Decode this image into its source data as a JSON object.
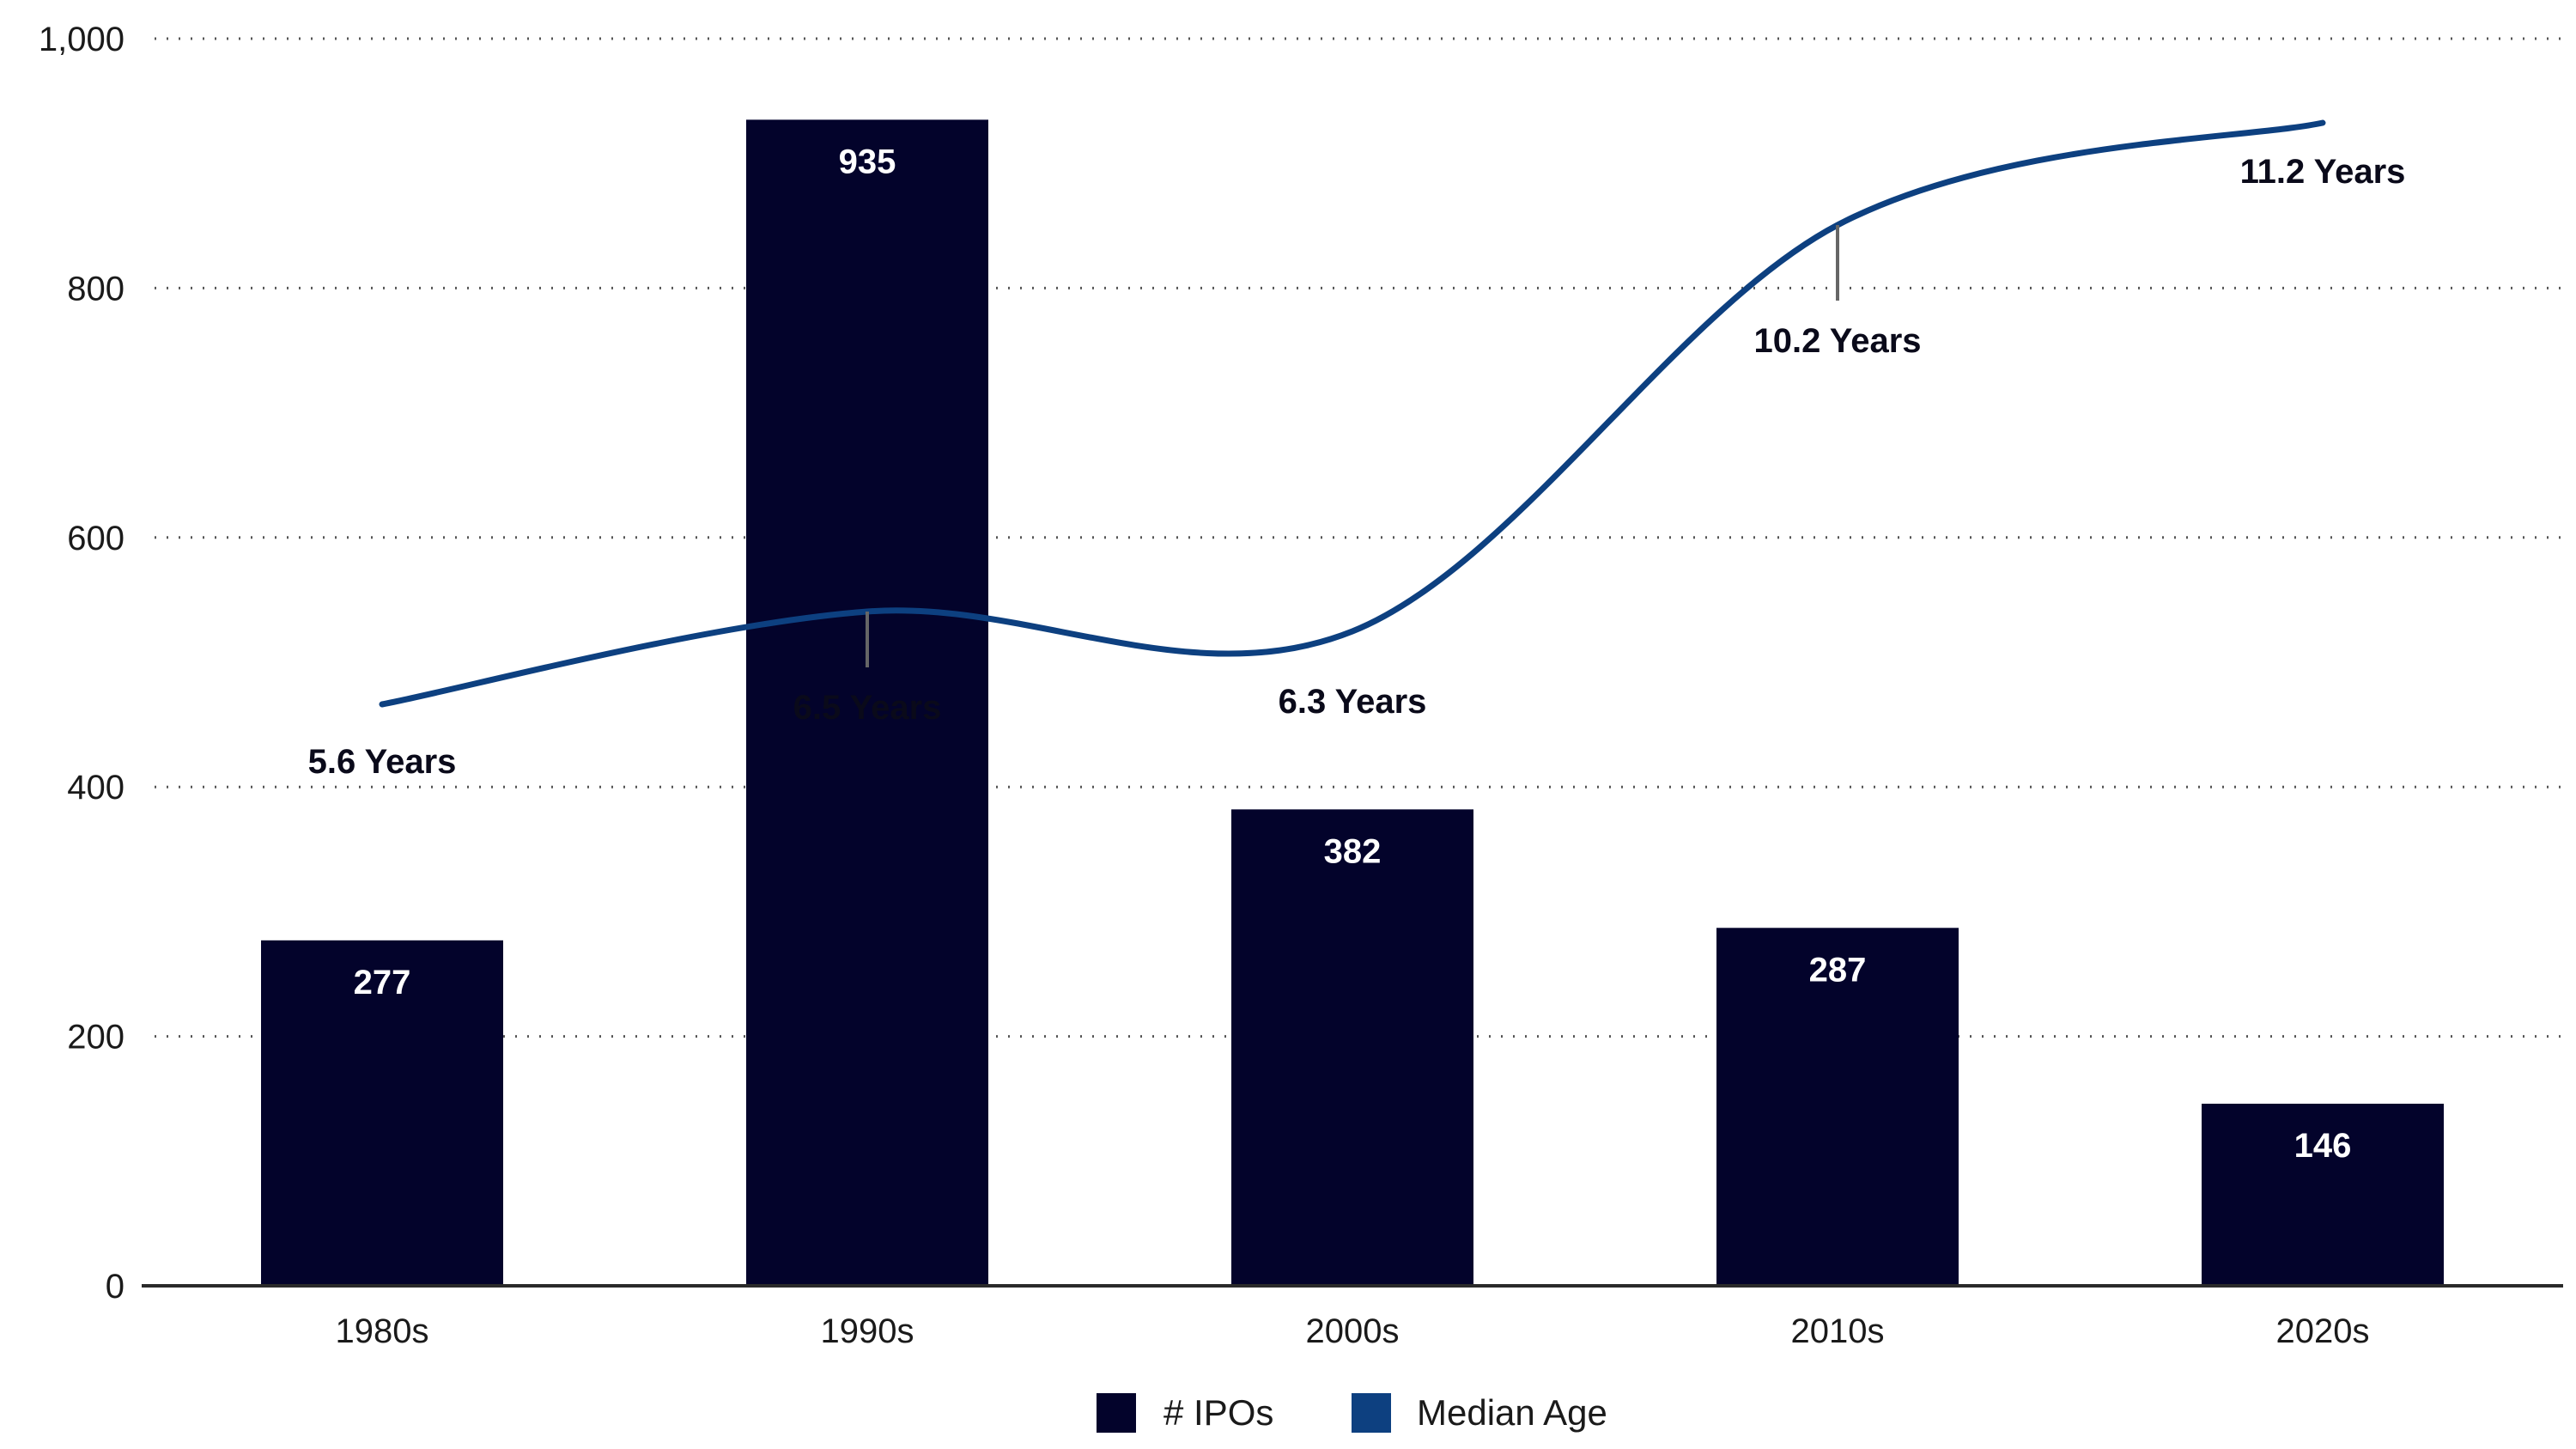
{
  "chart_data": {
    "type": "bar",
    "categories": [
      "1980s",
      "1990s",
      "2000s",
      "2010s",
      "2020s"
    ],
    "series": [
      {
        "name": "# IPOs",
        "type": "bar",
        "values": [
          277,
          935,
          382,
          287,
          146
        ],
        "data_labels": [
          "277",
          "935",
          "382",
          "287",
          "146"
        ],
        "color": "#03032b"
      },
      {
        "name": "Median Age",
        "type": "line",
        "values": [
          5.6,
          6.5,
          6.3,
          10.2,
          11.2
        ],
        "data_labels": [
          "5.6 Years",
          "6.5 Years",
          "6.3 Years",
          "10.2 Years",
          "11.2 Years"
        ],
        "color": "#0d4080"
      }
    ],
    "ylim": [
      0,
      1000
    ],
    "yticks": [
      0,
      200,
      400,
      600,
      800,
      1000
    ],
    "ytick_labels": [
      "0",
      "200",
      "400",
      "600",
      "800",
      "1,000"
    ],
    "grid": "horizontal-dotted",
    "legend": "bottom-center"
  }
}
